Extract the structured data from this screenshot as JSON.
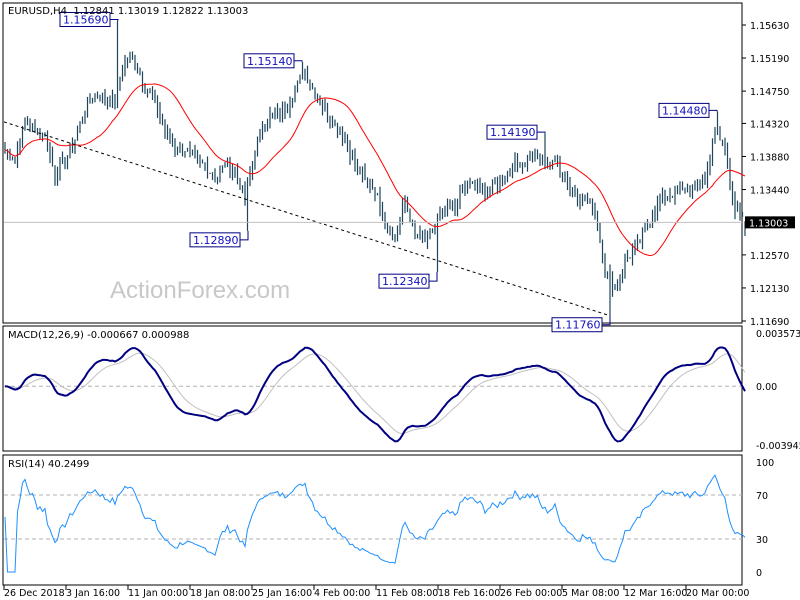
{
  "chart_data": {
    "type": "bar",
    "symbol_header": "EURUSD,H4  1.12841 1.13019 1.12822 1.13003",
    "ohlc_last": {
      "open": 1.12841,
      "high": 1.13019,
      "low": 1.12822,
      "close": 1.13003
    },
    "current_price_label": "1.13003",
    "price_axis_ticks": [
      "1.15630",
      "1.15190",
      "1.14750",
      "1.14320",
      "1.13880",
      "1.13440",
      "1.12570",
      "1.12130",
      "1.11690"
    ],
    "price_range": [
      1.1169,
      1.1563
    ],
    "time_axis_ticks": [
      "26 Dec 2018",
      "3 Jan 16:00",
      "11 Jan 00:00",
      "18 Jan 08:00",
      "25 Jan 16:00",
      "4 Feb 00:00",
      "11 Feb 08:00",
      "18 Feb 16:00",
      "26 Feb 00:00",
      "5 Mar 08:00",
      "12 Mar 16:00",
      "20 Mar 00:00"
    ],
    "close_path": [
      1.1397,
      1.1383,
      1.1437,
      1.1423,
      1.1417,
      1.1363,
      1.1383,
      1.141,
      1.145,
      1.147,
      1.1463,
      1.1463,
      1.1516,
      1.1516,
      1.1477,
      1.1463,
      1.1423,
      1.1397,
      1.1397,
      1.1383,
      1.1377,
      1.1357,
      1.1377,
      1.137,
      1.133,
      1.1397,
      1.1437,
      1.1443,
      1.145,
      1.1477,
      1.1503,
      1.147,
      1.145,
      1.143,
      1.141,
      1.1377,
      1.1357,
      1.1343,
      1.1303,
      1.1277,
      1.133,
      1.1283,
      1.1277,
      1.1297,
      1.1317,
      1.1317,
      1.135,
      1.135,
      1.1343,
      1.135,
      1.1363,
      1.1377,
      1.1383,
      1.139,
      1.1377,
      1.1383,
      1.1357,
      1.1337,
      1.133,
      1.1317,
      1.1237,
      1.121,
      1.125,
      1.1263,
      1.129,
      1.1317,
      1.1337,
      1.1337,
      1.1343,
      1.135,
      1.1357,
      1.1423,
      1.1397,
      1.1317,
      1.13
    ],
    "swing_labels": [
      {
        "text": "1.15690",
        "price": 1.1569,
        "kind": "high"
      },
      {
        "text": "1.12890",
        "price": 1.1289,
        "kind": "low"
      },
      {
        "text": "1.15140",
        "price": 1.1514,
        "kind": "high"
      },
      {
        "text": "1.12340",
        "price": 1.1234,
        "kind": "low"
      },
      {
        "text": "1.14190",
        "price": 1.1419,
        "kind": "high"
      },
      {
        "text": "1.11760",
        "price": 1.1176,
        "kind": "low"
      },
      {
        "text": "1.14480",
        "price": 1.1448,
        "kind": "high"
      }
    ],
    "trendline": {
      "start_price": 1.1434,
      "end_price": 1.1176,
      "style": "dashed",
      "color": "#000000"
    },
    "moving_average_color": "#ff0000",
    "bar_color": "#1d4459",
    "watermark": "ActionForex.com",
    "macd": {
      "title": "MACD(12,26,9) -0.000667 0.000988",
      "axis_ticks": [
        "0.003573",
        "0.00",
        "-0.003945"
      ],
      "range": [
        -0.003945,
        0.003573
      ],
      "main_color": "#000080",
      "signal_color": "#c0c0c0"
    },
    "rsi": {
      "title": "RSI(14) 40.2499",
      "axis_ticks": [
        "100",
        "70",
        "30",
        "0"
      ],
      "range": [
        0,
        100
      ],
      "levels": [
        70,
        30
      ],
      "color": "#1e90ff"
    }
  }
}
